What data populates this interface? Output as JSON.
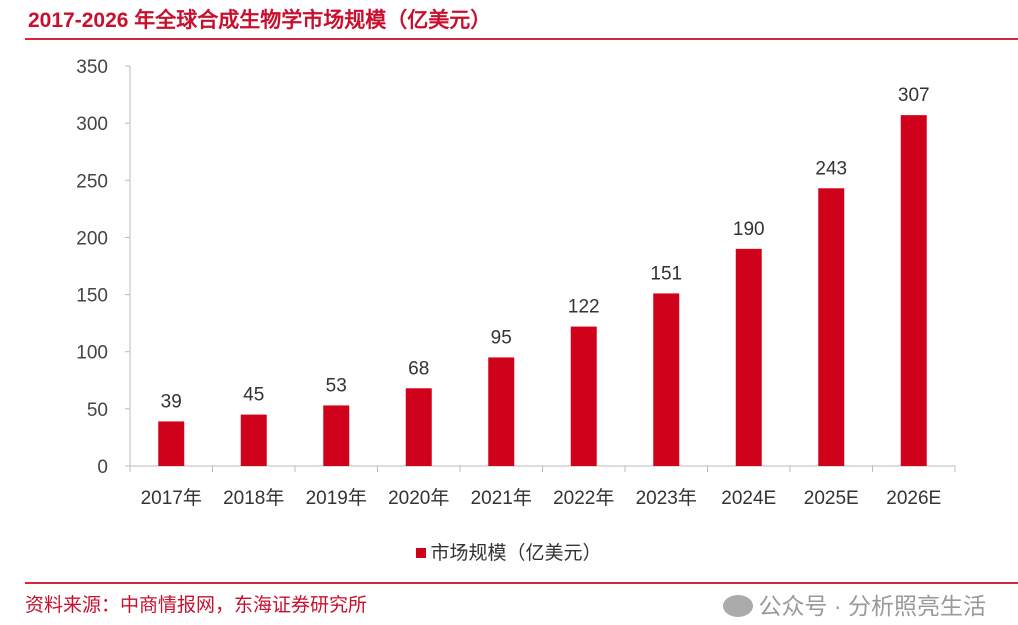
{
  "title": "2017-2026 年全球合成生物学市场规模（亿美元）",
  "source": "资料来源：中商情报网，东海证券研究所",
  "watermark": "公众号 · 分析照亮生活",
  "colors": {
    "bar": "#d0021b",
    "accent": "#c8102e"
  },
  "chart_data": {
    "type": "bar",
    "categories": [
      "2017年",
      "2018年",
      "2019年",
      "2020年",
      "2021年",
      "2022年",
      "2023年",
      "2024E",
      "2025E",
      "2026E"
    ],
    "series": [
      {
        "name": "市场规模（亿美元）",
        "values": [
          39,
          45,
          53,
          68,
          95,
          122,
          151,
          190,
          243,
          307
        ]
      }
    ],
    "ylim": [
      0,
      350
    ],
    "yticks": [
      0,
      50,
      100,
      150,
      200,
      250,
      300,
      350
    ],
    "grid": false,
    "legend": "bottom"
  }
}
